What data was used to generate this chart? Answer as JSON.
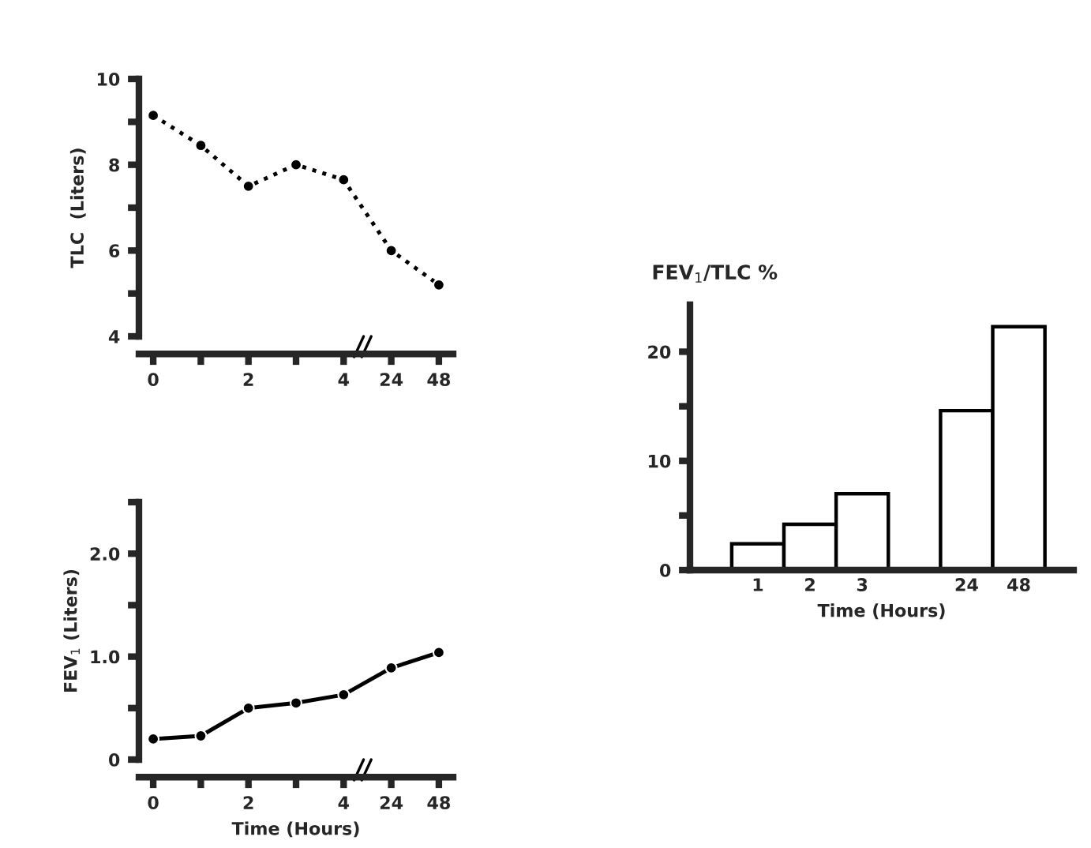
{
  "chart_data": [
    {
      "type": "line",
      "ylabel": "TLC  (Liters)",
      "categories": [
        "0",
        null,
        "2",
        null,
        "4",
        "24",
        "48"
      ],
      "ylim": [
        4,
        10
      ],
      "yticks": [
        4,
        {
          "value": 5,
          "label": null
        },
        6,
        {
          "value": 7,
          "label": null
        },
        8,
        {
          "value": 9,
          "label": null
        },
        10
      ],
      "marker": "circle",
      "line_style": "dotted",
      "series": [
        {
          "color": "#000000",
          "values": [
            9.15,
            8.45,
            7.5,
            8.0,
            7.65,
            6.0,
            5.2
          ]
        }
      ]
    },
    {
      "type": "line",
      "ylabel": "FEV$_{1}$ (Liters)",
      "xlabel": "Time (Hours)",
      "categories": [
        "0",
        null,
        "2",
        null,
        "4",
        "24",
        "48"
      ],
      "ylim": [
        0,
        2.5
      ],
      "yticks": [
        0,
        {
          "value": 0.5,
          "label": null
        },
        {
          "value": 1.0,
          "label": "1.0"
        },
        {
          "value": 1.5,
          "label": null
        },
        {
          "value": 2.0,
          "label": "2.0"
        },
        {
          "value": 2.5,
          "label": null
        }
      ],
      "marker": "circle",
      "line_style": "solid",
      "series": [
        {
          "color": "#000000",
          "values": [
            0.2,
            0.23,
            0.5,
            0.55,
            0.63,
            0.89,
            1.04
          ]
        }
      ]
    },
    {
      "type": "bar",
      "ylabel": "FEV$_{1}$/TLC %",
      "xlabel": "Time (Hours)",
      "categories": [
        "1",
        "2",
        "3",
        null,
        "24",
        "48"
      ],
      "ylim": [
        0,
        24.3
      ],
      "yticks": [
        0,
        {
          "value": 5,
          "label": null
        },
        10,
        {
          "value": 15,
          "label": null
        },
        20
      ],
      "series": [
        {
          "color": "#ffffff",
          "values": [
            2.4,
            4.2,
            7.0,
            null,
            14.6,
            22.3
          ]
        }
      ]
    }
  ]
}
